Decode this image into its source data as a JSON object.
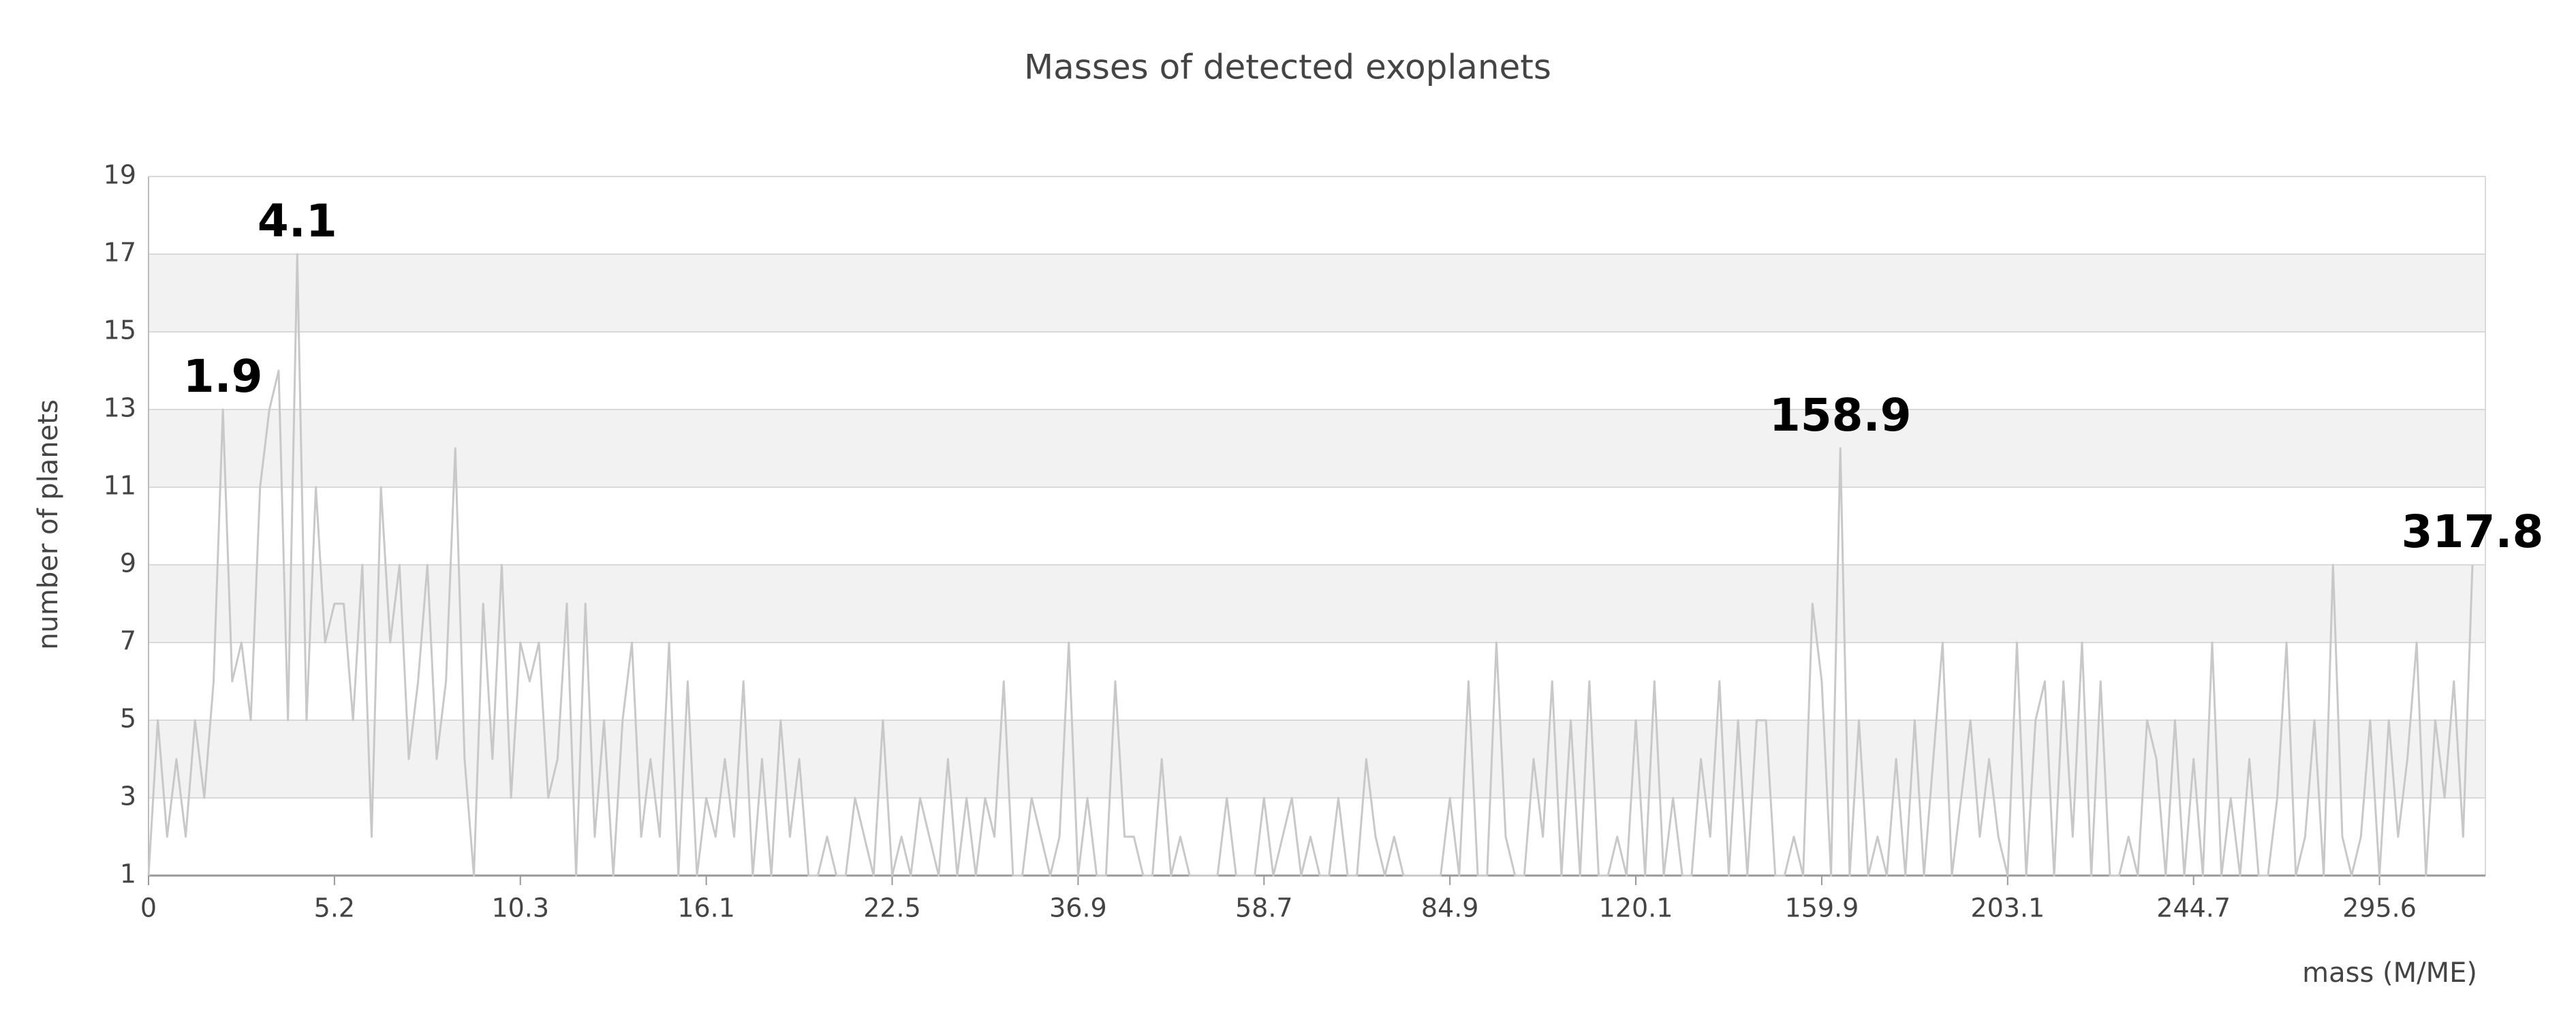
{
  "chart_data": {
    "type": "line",
    "title": "Masses of detected exoplanets",
    "x_label": "mass (M/ME)",
    "y_label": "number of planets",
    "categories": [
      "0",
      null,
      null,
      null,
      null,
      null,
      null,
      null,
      null,
      null,
      null,
      null,
      null,
      null,
      null,
      null,
      null,
      null,
      null,
      null,
      "5.2",
      null,
      null,
      null,
      null,
      null,
      null,
      null,
      null,
      null,
      null,
      null,
      null,
      null,
      null,
      null,
      null,
      null,
      null,
      null,
      "10.3",
      null,
      null,
      null,
      null,
      null,
      null,
      null,
      null,
      null,
      null,
      null,
      null,
      null,
      null,
      null,
      null,
      null,
      null,
      null,
      "16.1",
      null,
      null,
      null,
      null,
      null,
      null,
      null,
      null,
      null,
      null,
      null,
      null,
      null,
      null,
      null,
      null,
      null,
      null,
      null,
      "22.5",
      null,
      null,
      null,
      null,
      null,
      null,
      null,
      null,
      null,
      null,
      null,
      null,
      null,
      null,
      null,
      null,
      null,
      null,
      null,
      "36.9",
      null,
      null,
      null,
      null,
      null,
      null,
      null,
      null,
      null,
      null,
      null,
      null,
      null,
      null,
      null,
      null,
      null,
      null,
      null,
      "58.7",
      null,
      null,
      null,
      null,
      null,
      null,
      null,
      null,
      null,
      null,
      null,
      null,
      null,
      null,
      null,
      null,
      null,
      null,
      null,
      "84.9",
      null,
      null,
      null,
      null,
      null,
      null,
      null,
      null,
      null,
      null,
      null,
      null,
      null,
      null,
      null,
      null,
      null,
      null,
      null,
      "120.1",
      null,
      null,
      null,
      null,
      null,
      null,
      null,
      null,
      null,
      null,
      null,
      null,
      null,
      null,
      null,
      null,
      null,
      null,
      null,
      "159.9",
      null,
      null,
      null,
      null,
      null,
      null,
      null,
      null,
      null,
      null,
      null,
      null,
      null,
      null,
      null,
      null,
      null,
      null,
      null,
      "203.1",
      null,
      null,
      null,
      null,
      null,
      null,
      null,
      null,
      null,
      null,
      null,
      null,
      null,
      null,
      null,
      null,
      null,
      null,
      null,
      "244.7",
      null,
      null,
      null,
      null,
      null,
      null,
      null,
      null,
      null,
      null,
      null,
      null,
      null,
      null,
      null,
      null,
      null,
      null,
      null,
      "295.6",
      null,
      null,
      null,
      null,
      null,
      null,
      null,
      null,
      null,
      null
    ],
    "values": [
      1,
      5,
      2,
      4,
      2,
      5,
      3,
      6,
      13,
      6,
      7,
      5,
      11,
      13,
      14,
      5,
      17,
      5,
      11,
      7,
      8,
      8,
      5,
      9,
      2,
      11,
      7,
      9,
      4,
      6,
      9,
      4,
      6,
      12,
      4,
      1,
      8,
      4,
      9,
      3,
      7,
      6,
      7,
      3,
      4,
      8,
      1,
      8,
      2,
      5,
      1,
      5,
      7,
      2,
      4,
      2,
      7,
      1,
      6,
      1,
      3,
      2,
      4,
      2,
      6,
      1,
      4,
      1,
      5,
      2,
      4,
      1,
      1,
      2,
      1,
      1,
      3,
      2,
      1,
      5,
      1,
      2,
      1,
      3,
      2,
      1,
      4,
      1,
      3,
      1,
      3,
      2,
      6,
      1,
      1,
      3,
      2,
      1,
      2,
      7,
      1,
      3,
      1,
      1,
      6,
      2,
      2,
      1,
      1,
      4,
      1,
      2,
      1,
      1,
      1,
      1,
      3,
      1,
      1,
      1,
      3,
      1,
      2,
      3,
      1,
      2,
      1,
      1,
      3,
      1,
      1,
      4,
      2,
      1,
      2,
      1,
      1,
      1,
      1,
      1,
      3,
      1,
      6,
      1,
      1,
      7,
      2,
      1,
      1,
      4,
      2,
      6,
      1,
      5,
      1,
      6,
      1,
      1,
      2,
      1,
      5,
      1,
      6,
      1,
      3,
      1,
      1,
      4,
      2,
      6,
      1,
      5,
      1,
      5,
      5,
      1,
      1,
      2,
      1,
      8,
      6,
      1,
      12,
      1,
      5,
      1,
      2,
      1,
      4,
      1,
      5,
      1,
      4,
      7,
      1,
      3,
      5,
      2,
      4,
      2,
      1,
      7,
      1,
      5,
      6,
      1,
      6,
      2,
      7,
      1,
      6,
      1,
      1,
      2,
      1,
      5,
      4,
      1,
      5,
      1,
      4,
      1,
      7,
      1,
      3,
      1,
      4,
      1,
      1,
      3,
      7,
      1,
      2,
      5,
      1,
      9,
      2,
      1,
      2,
      5,
      1,
      5,
      2,
      4,
      7,
      1,
      5,
      3,
      6,
      2,
      9
    ],
    "annotations": [
      {
        "text": "1.9",
        "index": 8
      },
      {
        "text": "4.1",
        "index": 16
      },
      {
        "text": "158.9",
        "index": 182
      },
      {
        "text": "317.8",
        "index": 250
      }
    ],
    "color": "#c8c8c8",
    "ylim": [
      1,
      19
    ],
    "yticks": [
      1,
      3,
      5,
      7,
      9,
      11,
      13,
      15,
      17,
      19
    ],
    "grid": true
  }
}
